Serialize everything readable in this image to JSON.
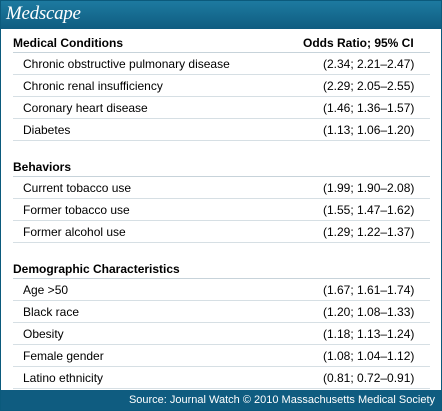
{
  "brand": {
    "logo": "Medscape"
  },
  "sections": [
    {
      "title": "Medical Conditions",
      "value_header": "Odds Ratio; 95% CI",
      "rows": [
        {
          "name": "Chronic obstructive pulmonary disease",
          "value": "(2.34; 2.21–2.47)"
        },
        {
          "name": "Chronic renal insufficiency",
          "value": "(2.29; 2.05–2.55)"
        },
        {
          "name": "Coronary heart disease",
          "value": "(1.46; 1.36–1.57)"
        },
        {
          "name": "Diabetes",
          "value": "(1.13; 1.06–1.20)"
        }
      ]
    },
    {
      "title": "Behaviors",
      "value_header": "",
      "rows": [
        {
          "name": "Current tobacco use",
          "value": "(1.99; 1.90–2.08)"
        },
        {
          "name": "Former tobacco use",
          "value": "(1.55; 1.47–1.62)"
        },
        {
          "name": "Former alcohol use",
          "value": "(1.29; 1.22–1.37)"
        }
      ]
    },
    {
      "title": "Demographic Characteristics",
      "value_header": "",
      "rows": [
        {
          "name": "Age >50",
          "value": "(1.67; 1.61–1.74)"
        },
        {
          "name": "Black race",
          "value": "(1.20; 1.08–1.33)"
        },
        {
          "name": "Obesity",
          "value": "(1.18; 1.13–1.24)"
        },
        {
          "name": "Female gender",
          "value": "(1.08; 1.04–1.12)"
        },
        {
          "name": "Latino ethnicity",
          "value": "(0.81; 0.72–0.91)"
        }
      ]
    }
  ],
  "footer": {
    "source": "Source: Journal Watch © 2010 Massachusetts Medical Society"
  },
  "colors": {
    "brand": "#0f5c80",
    "rule": "#d6dfe4"
  }
}
